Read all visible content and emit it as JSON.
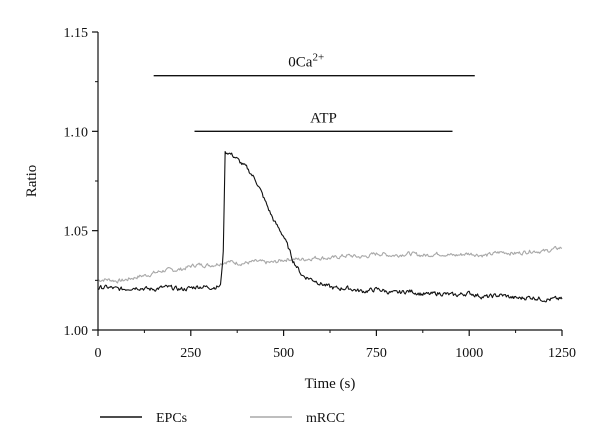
{
  "chart_data": {
    "type": "line",
    "xlabel": "Time (s)",
    "ylabel": "Ratio",
    "xlim": [
      0,
      1250
    ],
    "ylim": [
      1.0,
      1.15
    ],
    "xticks": [
      0,
      250,
      500,
      750,
      1000,
      1250
    ],
    "yticks": [
      1.0,
      1.05,
      1.1,
      1.15
    ],
    "ytick_labels": [
      "1.00",
      "1.05",
      "1.10",
      "1.15"
    ],
    "grid": false,
    "legend_position": "bottom",
    "annotations": [
      {
        "label": "0Ca",
        "superscript": "2+",
        "x_start": 150,
        "x_end": 1015,
        "y": 1.128
      },
      {
        "label": "ATP",
        "x_start": 260,
        "x_end": 955,
        "y": 1.1
      }
    ],
    "series": [
      {
        "name": "EPCs",
        "color": "#111111",
        "x": [
          0,
          50,
          100,
          150,
          200,
          250,
          300,
          330,
          338,
          342,
          350,
          370,
          400,
          425,
          450,
          475,
          500,
          525,
          550,
          600,
          650,
          700,
          750,
          800,
          850,
          900,
          950,
          1000,
          1050,
          1100,
          1150,
          1200,
          1250
        ],
        "y": [
          1.021,
          1.021,
          1.021,
          1.021,
          1.021,
          1.021,
          1.022,
          1.022,
          1.04,
          1.089,
          1.089,
          1.087,
          1.082,
          1.075,
          1.065,
          1.055,
          1.047,
          1.035,
          1.028,
          1.023,
          1.021,
          1.02,
          1.02,
          1.019,
          1.019,
          1.018,
          1.018,
          1.018,
          1.017,
          1.017,
          1.016,
          1.016,
          1.015
        ]
      },
      {
        "name": "mRCC",
        "color": "#a8a8a8",
        "x": [
          0,
          50,
          100,
          150,
          200,
          250,
          300,
          350,
          400,
          450,
          500,
          550,
          600,
          650,
          700,
          750,
          800,
          850,
          900,
          950,
          1000,
          1050,
          1100,
          1150,
          1200,
          1250
        ],
        "y": [
          1.025,
          1.025,
          1.026,
          1.029,
          1.03,
          1.032,
          1.033,
          1.034,
          1.034,
          1.034,
          1.035,
          1.036,
          1.036,
          1.037,
          1.037,
          1.038,
          1.038,
          1.038,
          1.038,
          1.038,
          1.038,
          1.038,
          1.039,
          1.039,
          1.04,
          1.041
        ]
      }
    ]
  }
}
